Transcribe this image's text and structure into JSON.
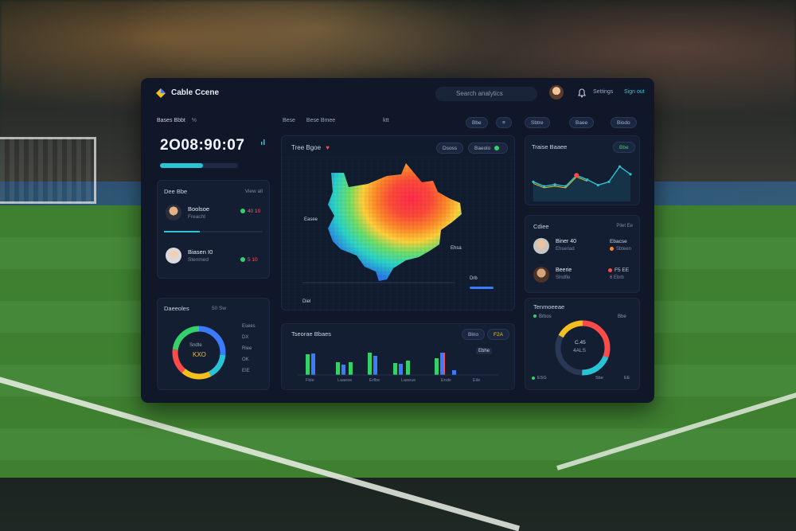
{
  "app": {
    "title": "Cable Ccene"
  },
  "header": {
    "search_placeholder": "Search analytics",
    "links": [
      "Settings",
      "Sign out"
    ]
  },
  "scoreboard": {
    "section_label": "Bases Bbbt",
    "section_aux": "%",
    "time": "2O08:90:07",
    "progress": 0.55
  },
  "players": {
    "title": "Dee Bbe",
    "action": "View all",
    "items": [
      {
        "name": "Boolsoe",
        "sub": "Freacht",
        "stat": "40 10"
      },
      {
        "name": "Biasen I0",
        "sub": "Stenmed",
        "stat": "5 10"
      }
    ]
  },
  "donut_left": {
    "title": "Daeeoles",
    "tag": "50 Sw",
    "center_top": "Sndte",
    "center_value": "KXO",
    "legend": [
      "Esees",
      "DX",
      "Riee",
      "OK",
      "EIE"
    ]
  },
  "heatmap": {
    "toolbar": [
      "Bese",
      "Bese Bmee",
      "ktt"
    ],
    "title": "Tree Bgoe",
    "chip1": "Dsoss",
    "chip2": "Baeolo",
    "labels": [
      "Ehsa",
      "Easee",
      "Drb",
      "Diel"
    ]
  },
  "bars": {
    "title": "Tseorae Bbaes",
    "tags": [
      "Blno",
      "F2A"
    ],
    "badge": "Ebhe",
    "categories": [
      "Fble",
      "Laaeoe",
      "Erfbe",
      "Laeeue",
      "Ende",
      "Eile"
    ]
  },
  "right_tabs": [
    "Sbtre",
    "Baee",
    "Biodo"
  ],
  "trend": {
    "title": "Traise Baaee",
    "chip": "Bbe",
    "values": [
      30,
      22,
      25,
      22,
      42,
      34,
      24,
      30,
      58,
      44
    ]
  },
  "roster": {
    "title": "Cdiee",
    "action": "Pilet Ee",
    "items": [
      {
        "name": "Biner 40",
        "sub": "Ehseriad",
        "stat": "Ebacse",
        "stat2": "Sbteen"
      },
      {
        "name": "Beerie",
        "sub": "Slndfle",
        "stat": "F5 EE",
        "stat2": "6 Ebrb"
      }
    ]
  },
  "donut_right": {
    "title": "Tenmoeeae",
    "legend": "Brbos",
    "side_label": "Bbe",
    "center_top": "C.45",
    "center_value": "4ALS",
    "foot_left": "ESG",
    "foot_right": "Sbe",
    "foot_num": "EE"
  },
  "colors": {
    "accent": "#29c3d6",
    "green": "#34d16b",
    "red": "#ff4a4a",
    "yellow": "#f4c020",
    "blue": "#3a7bff",
    "panel": "#0f1729"
  }
}
